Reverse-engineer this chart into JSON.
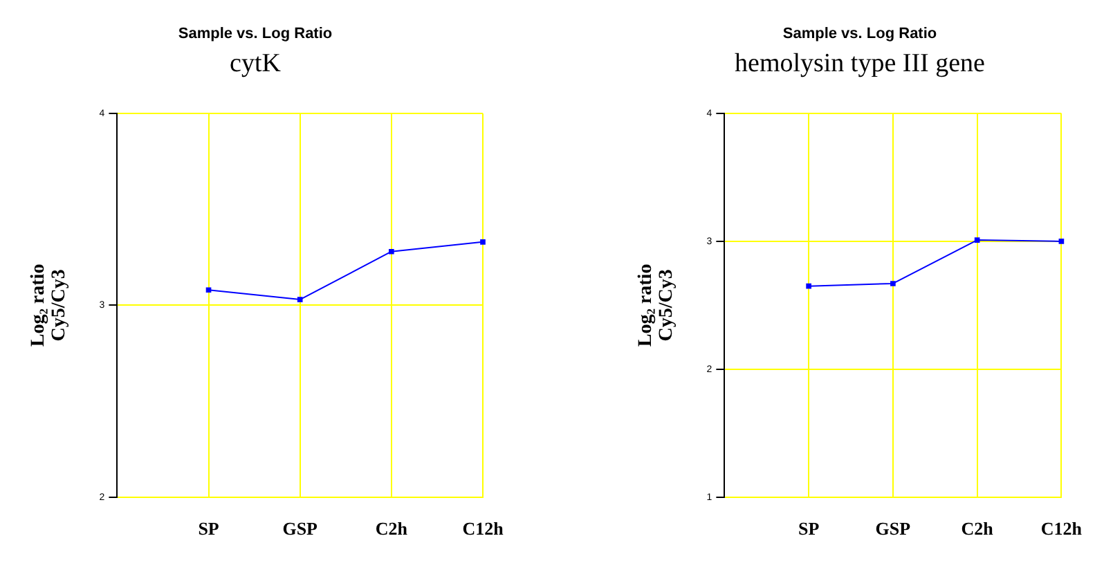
{
  "chart_data": [
    {
      "type": "line",
      "title": "Sample vs. Log Ratio",
      "subtitle": "cytK",
      "ylabel": "Log₂ ratio\nCy5/Cy3",
      "categories": [
        null,
        "SP",
        "GSP",
        "C2h",
        "C12h"
      ],
      "series": [
        {
          "color": "#0000ff",
          "values": [
            null,
            3.08,
            3.03,
            3.28,
            3.33
          ]
        }
      ],
      "ylim": [
        2,
        4
      ],
      "yticks": [
        2,
        3,
        4
      ],
      "grid": true,
      "legend": false,
      "marker": "square",
      "line_style": "solid"
    },
    {
      "type": "line",
      "title": "Sample vs. Log Ratio",
      "subtitle": "hemolysin type III gene",
      "ylabel": "Log₂ ratio\nCy5/Cy3",
      "categories": [
        null,
        "SP",
        "GSP",
        "C2h",
        "C12h"
      ],
      "series": [
        {
          "color": "#0000ff",
          "values": [
            null,
            2.65,
            2.67,
            3.01,
            3.0
          ]
        }
      ],
      "ylim": [
        1,
        4
      ],
      "yticks": [
        1,
        2,
        3,
        4
      ],
      "grid": true,
      "legend": false,
      "marker": "square",
      "line_style": "solid"
    }
  ]
}
